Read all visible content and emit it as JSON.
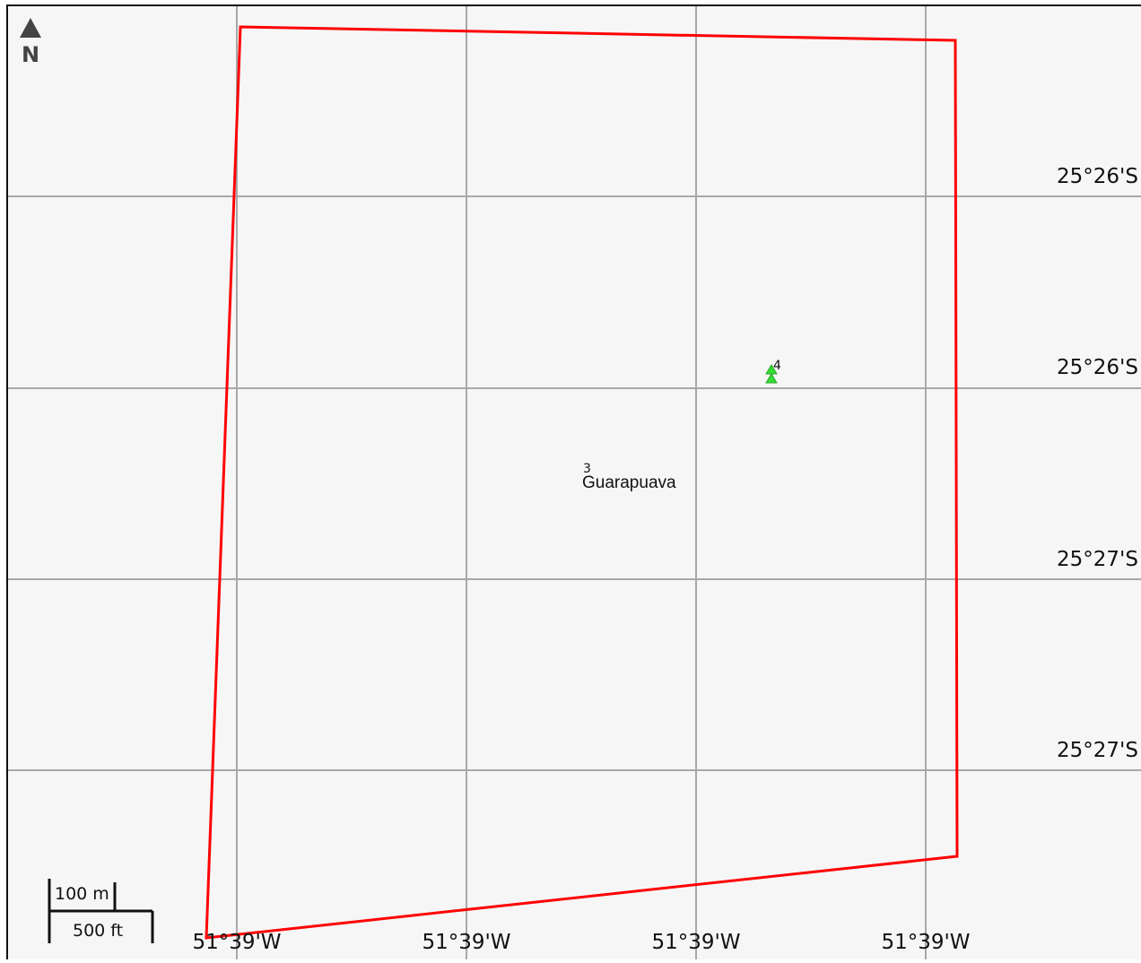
{
  "north_arrow": {
    "label": "N"
  },
  "latitude_labels": [
    "25°26'S",
    "25°26'S",
    "25°27'S",
    "25°27'S"
  ],
  "longitude_labels": [
    "51°39'W",
    "51°39'W",
    "51°39'W",
    "51°39'W"
  ],
  "places": [
    {
      "name": "Guarapuava",
      "number": "3"
    }
  ],
  "markers": [
    {
      "number": "4",
      "color": "#33dd33"
    }
  ],
  "scale_bar": {
    "metric": "100 m",
    "imperial": "500 ft"
  },
  "colors": {
    "background": "#f6f6f6",
    "frame": "#111111",
    "grid": "#a8a8a8",
    "boundary": "#ff0000",
    "marker": "#33dd33"
  }
}
